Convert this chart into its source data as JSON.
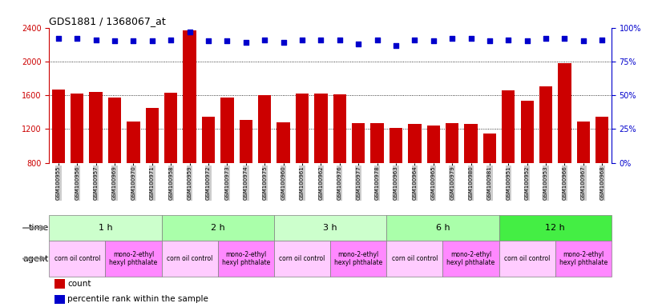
{
  "title": "GDS1881 / 1368067_at",
  "samples": [
    "GSM100955",
    "GSM100956",
    "GSM100957",
    "GSM100969",
    "GSM100970",
    "GSM100971",
    "GSM100958",
    "GSM100959",
    "GSM100972",
    "GSM100973",
    "GSM100974",
    "GSM100975",
    "GSM100960",
    "GSM100961",
    "GSM100962",
    "GSM100976",
    "GSM100977",
    "GSM100978",
    "GSM100963",
    "GSM100964",
    "GSM100965",
    "GSM100979",
    "GSM100980",
    "GSM100981",
    "GSM100951",
    "GSM100952",
    "GSM100953",
    "GSM100966",
    "GSM100967",
    "GSM100968"
  ],
  "counts": [
    1670,
    1620,
    1640,
    1570,
    1290,
    1450,
    1630,
    2370,
    1340,
    1570,
    1310,
    1600,
    1280,
    1620,
    1620,
    1610,
    1270,
    1270,
    1210,
    1260,
    1240,
    1270,
    1260,
    1150,
    1660,
    1530,
    1700,
    1980,
    1290,
    1340
  ],
  "percentiles": [
    92,
    92,
    91,
    90,
    90,
    90,
    91,
    97,
    90,
    90,
    89,
    91,
    89,
    91,
    91,
    91,
    88,
    91,
    87,
    91,
    90,
    92,
    92,
    90,
    91,
    90,
    92,
    92,
    90,
    91
  ],
  "ylim_left": [
    800,
    2400
  ],
  "ylim_right": [
    0,
    100
  ],
  "yticks_left": [
    800,
    1200,
    1600,
    2000,
    2400
  ],
  "yticks_right": [
    0,
    25,
    50,
    75,
    100
  ],
  "bar_color": "#cc0000",
  "dot_color": "#0000cc",
  "time_groups": [
    {
      "label": "1 h",
      "start": 0,
      "end": 6,
      "color": "#ccffcc"
    },
    {
      "label": "2 h",
      "start": 6,
      "end": 12,
      "color": "#aaffaa"
    },
    {
      "label": "3 h",
      "start": 12,
      "end": 18,
      "color": "#ccffcc"
    },
    {
      "label": "6 h",
      "start": 18,
      "end": 24,
      "color": "#aaffaa"
    },
    {
      "label": "12 h",
      "start": 24,
      "end": 30,
      "color": "#44ee44"
    }
  ],
  "agent_groups": [
    {
      "label": "corn oil control",
      "start": 0,
      "end": 3,
      "color": "#ffccff"
    },
    {
      "label": "mono-2-ethyl\nhexyl phthalate",
      "start": 3,
      "end": 6,
      "color": "#ff88ff"
    },
    {
      "label": "corn oil control",
      "start": 6,
      "end": 9,
      "color": "#ffccff"
    },
    {
      "label": "mono-2-ethyl\nhexyl phthalate",
      "start": 9,
      "end": 12,
      "color": "#ff88ff"
    },
    {
      "label": "corn oil control",
      "start": 12,
      "end": 15,
      "color": "#ffccff"
    },
    {
      "label": "mono-2-ethyl\nhexyl phthalate",
      "start": 15,
      "end": 18,
      "color": "#ff88ff"
    },
    {
      "label": "corn oil control",
      "start": 18,
      "end": 21,
      "color": "#ffccff"
    },
    {
      "label": "mono-2-ethyl\nhexyl phthalate",
      "start": 21,
      "end": 24,
      "color": "#ff88ff"
    },
    {
      "label": "corn oil control",
      "start": 24,
      "end": 27,
      "color": "#ffccff"
    },
    {
      "label": "mono-2-ethyl\nhexyl phthalate",
      "start": 27,
      "end": 30,
      "color": "#ff88ff"
    }
  ],
  "bg_color": "#ffffff",
  "tick_label_bg": "#cccccc"
}
